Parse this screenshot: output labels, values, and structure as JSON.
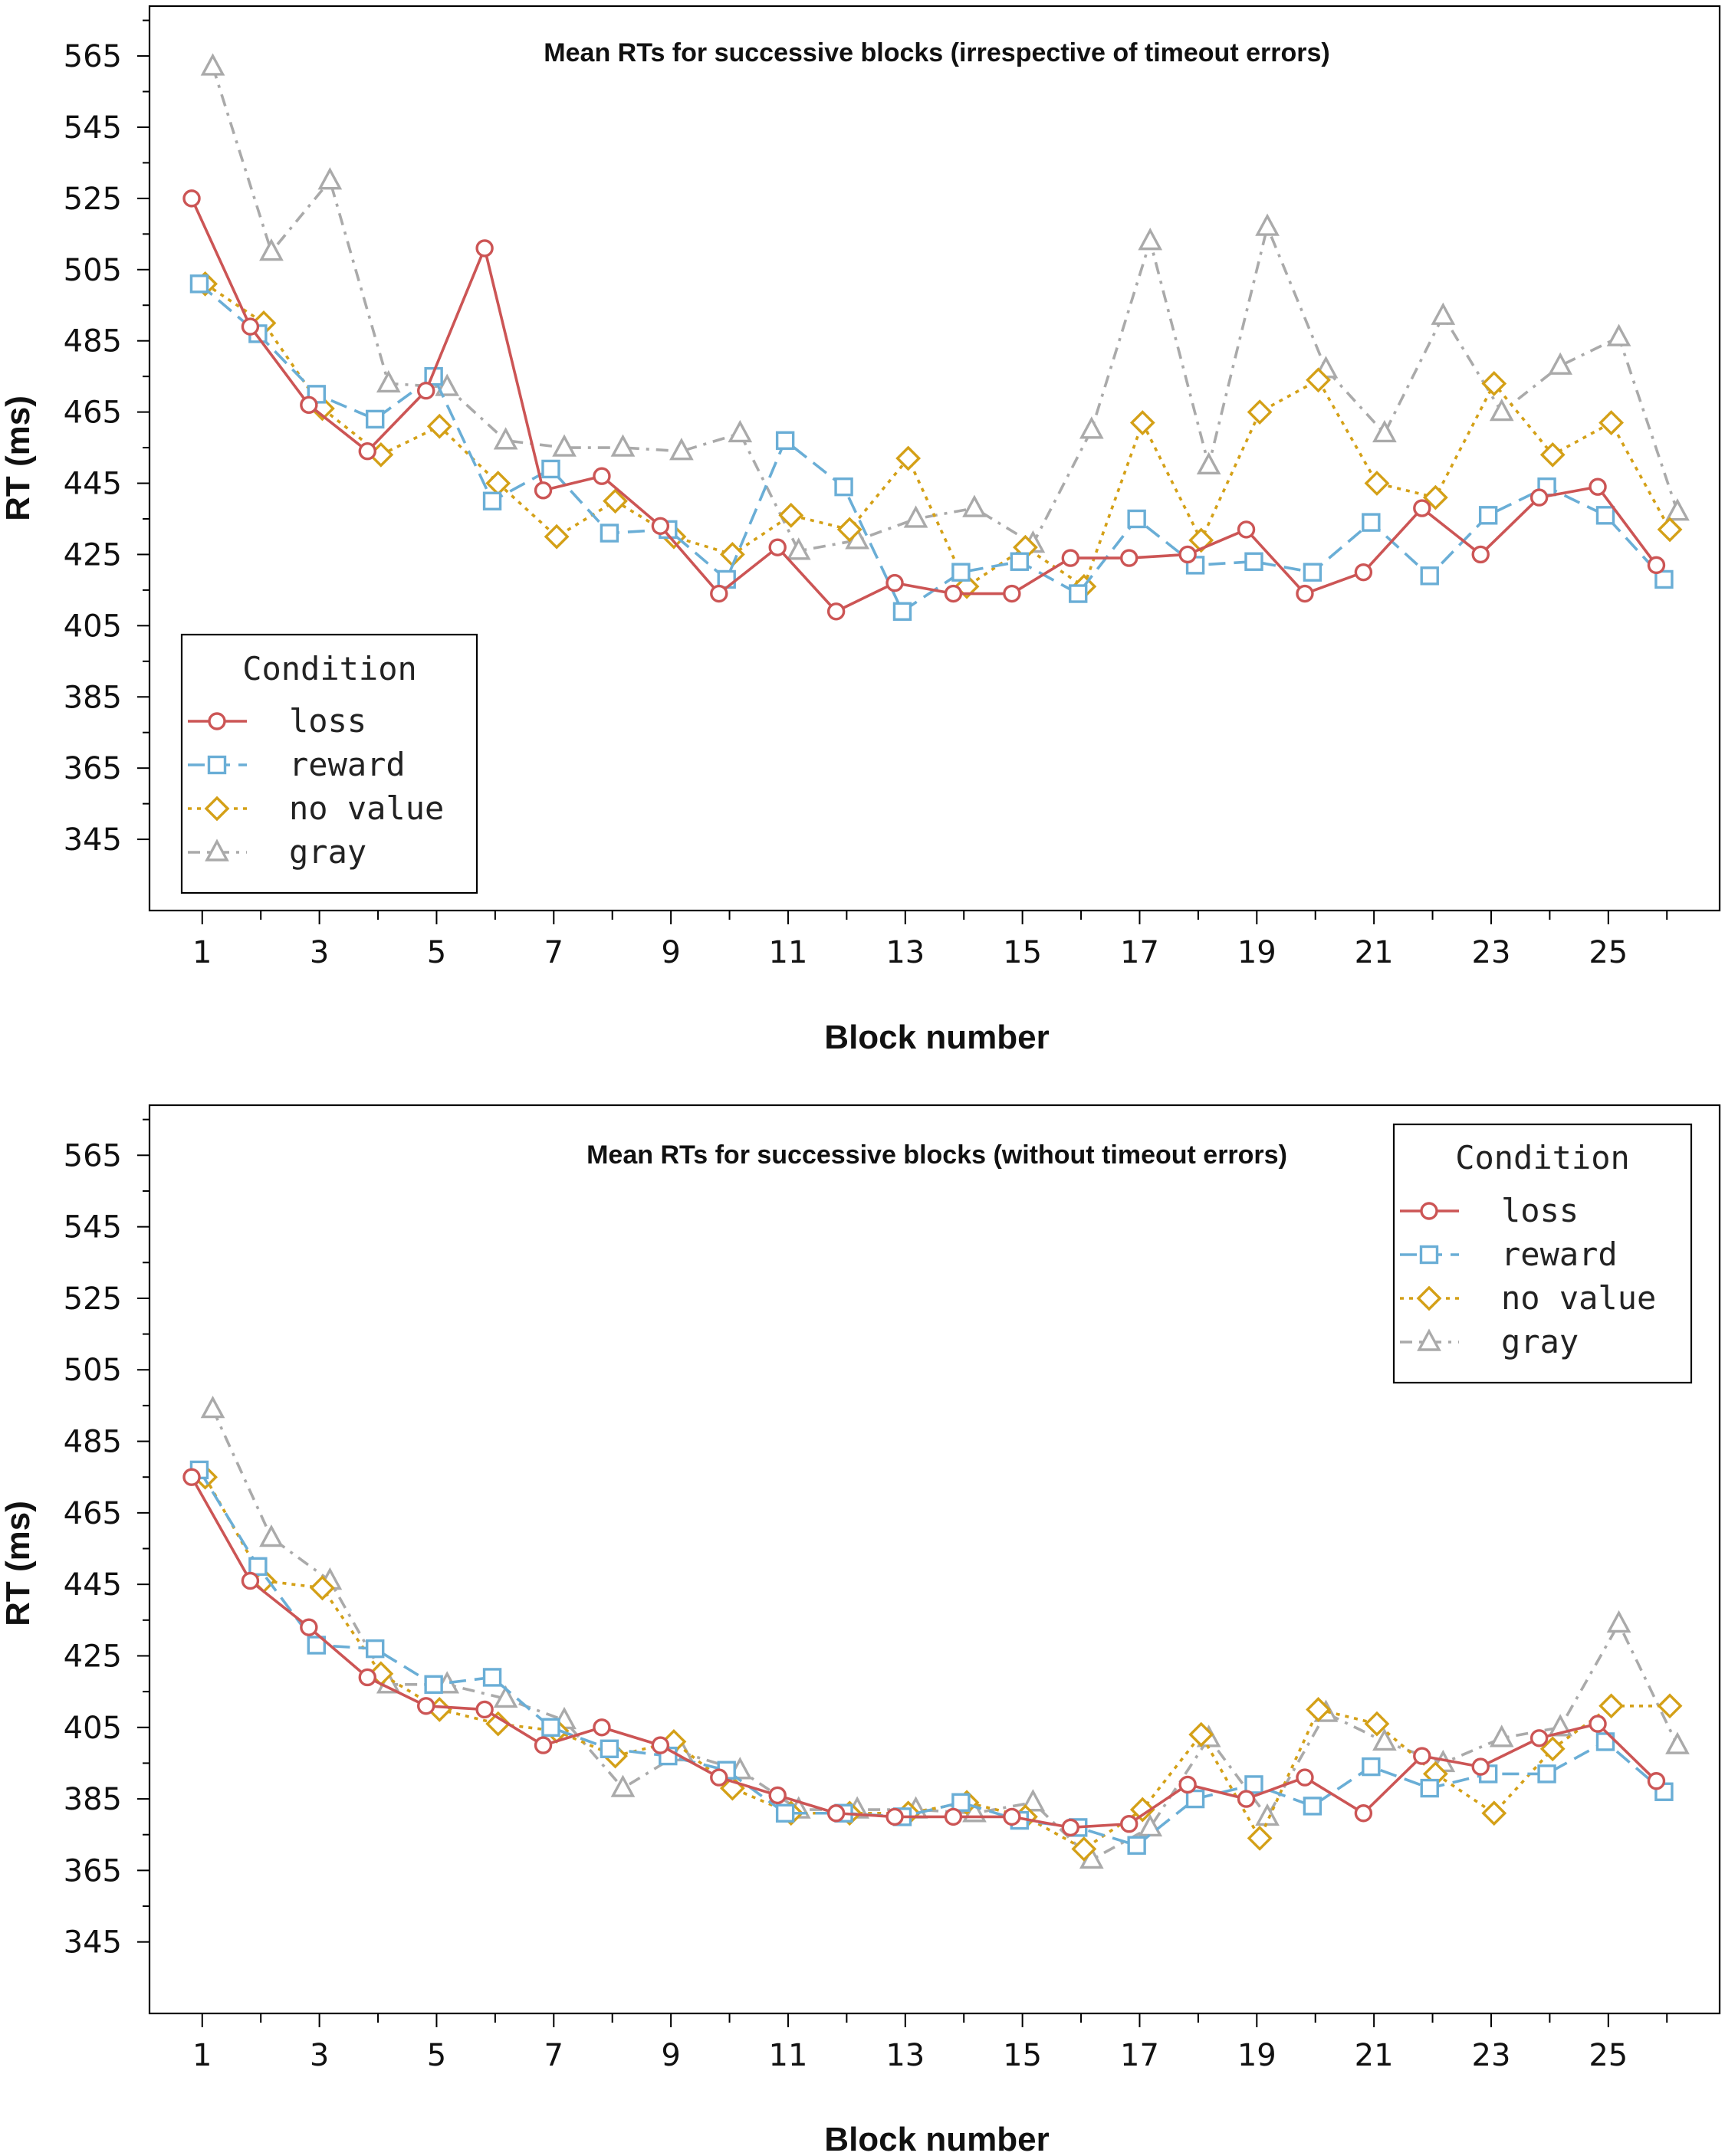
{
  "chart_data": [
    {
      "type": "line",
      "title": "Mean RTs for successive blocks (irrespective of timeout errors)",
      "xlabel": "Block number",
      "ylabel": "RT (ms)",
      "ylim": [
        325,
        579
      ],
      "xlim": [
        0.1,
        26.9
      ],
      "yticks": [
        345,
        365,
        385,
        405,
        425,
        445,
        465,
        485,
        505,
        525,
        545,
        565
      ],
      "xticks": [
        1,
        3,
        5,
        7,
        9,
        11,
        13,
        15,
        17,
        19,
        21,
        23,
        25
      ],
      "legend_title": "Condition",
      "legend_position": "bottom-left",
      "x": [
        1,
        2,
        3,
        4,
        5,
        6,
        7,
        8,
        9,
        10,
        11,
        12,
        13,
        14,
        15,
        16,
        17,
        18,
        19,
        20,
        21,
        22,
        23,
        24,
        25,
        26
      ],
      "series": [
        {
          "name": "loss",
          "color": "#cc5555",
          "dash": "solid",
          "marker": "circle",
          "offset": -0.18,
          "values": [
            525,
            489,
            467,
            454,
            471,
            511,
            443,
            447,
            433,
            414,
            427,
            409,
            417,
            414,
            414,
            424,
            424,
            425,
            432,
            414,
            420,
            438,
            425,
            441,
            444,
            422
          ]
        },
        {
          "name": "reward",
          "color": "#6aaed6",
          "dash": "dashed",
          "marker": "square",
          "offset": -0.05,
          "values": [
            501,
            487,
            470,
            463,
            475,
            440,
            449,
            431,
            432,
            418,
            457,
            444,
            409,
            420,
            423,
            414,
            435,
            422,
            423,
            420,
            434,
            419,
            436,
            444,
            436,
            418
          ]
        },
        {
          "name": "no value",
          "color": "#d4a017",
          "dash": "dotted",
          "marker": "diamond",
          "offset": 0.05,
          "values": [
            501,
            490,
            466,
            453,
            461,
            445,
            430,
            440,
            430,
            425,
            436,
            432,
            452,
            416,
            427,
            416,
            462,
            429,
            465,
            474,
            445,
            441,
            473,
            453,
            462,
            432
          ]
        },
        {
          "name": "gray",
          "color": "#aaaaaa",
          "dash": "dashdot",
          "marker": "triangle",
          "offset": 0.18,
          "values": [
            562,
            510,
            530,
            473,
            472,
            457,
            455,
            455,
            454,
            459,
            426,
            429,
            435,
            438,
            428,
            460,
            513,
            450,
            517,
            477,
            459,
            492,
            465,
            478,
            486,
            437
          ]
        }
      ]
    },
    {
      "type": "line",
      "title": "Mean RTs for successive blocks (without timeout errors)",
      "xlabel": "Block number",
      "ylabel": "RT (ms)",
      "ylim": [
        325,
        579
      ],
      "xlim": [
        0.1,
        26.9
      ],
      "yticks": [
        345,
        365,
        385,
        405,
        425,
        445,
        465,
        485,
        505,
        525,
        545,
        565
      ],
      "xticks": [
        1,
        3,
        5,
        7,
        9,
        11,
        13,
        15,
        17,
        19,
        21,
        23,
        25
      ],
      "legend_title": "Condition",
      "legend_position": "top-right",
      "x": [
        1,
        2,
        3,
        4,
        5,
        6,
        7,
        8,
        9,
        10,
        11,
        12,
        13,
        14,
        15,
        16,
        17,
        18,
        19,
        20,
        21,
        22,
        23,
        24,
        25,
        26
      ],
      "series": [
        {
          "name": "loss",
          "color": "#cc5555",
          "dash": "solid",
          "marker": "circle",
          "offset": -0.18,
          "values": [
            475,
            446,
            433,
            419,
            411,
            410,
            400,
            405,
            400,
            391,
            386,
            381,
            380,
            380,
            380,
            377,
            378,
            389,
            385,
            391,
            381,
            397,
            394,
            402,
            406,
            390
          ]
        },
        {
          "name": "reward",
          "color": "#6aaed6",
          "dash": "dashed",
          "marker": "square",
          "offset": -0.05,
          "values": [
            477,
            450,
            428,
            427,
            417,
            419,
            405,
            399,
            397,
            393,
            381,
            381,
            380,
            384,
            379,
            377,
            372,
            385,
            389,
            383,
            394,
            388,
            392,
            392,
            401,
            387
          ]
        },
        {
          "name": "no value",
          "color": "#d4a017",
          "dash": "dotted",
          "marker": "diamond",
          "offset": 0.05,
          "values": [
            475,
            446,
            444,
            420,
            410,
            406,
            404,
            397,
            401,
            388,
            381,
            381,
            381,
            384,
            380,
            371,
            382,
            403,
            374,
            410,
            406,
            392,
            381,
            399,
            411,
            411
          ]
        },
        {
          "name": "gray",
          "color": "#aaaaaa",
          "dash": "dashdot",
          "marker": "triangle",
          "offset": 0.18,
          "values": [
            494,
            458,
            446,
            417,
            417,
            413,
            407,
            388,
            398,
            393,
            382,
            382,
            382,
            381,
            384,
            368,
            377,
            402,
            380,
            409,
            401,
            395,
            402,
            405,
            434,
            400
          ]
        }
      ]
    }
  ]
}
